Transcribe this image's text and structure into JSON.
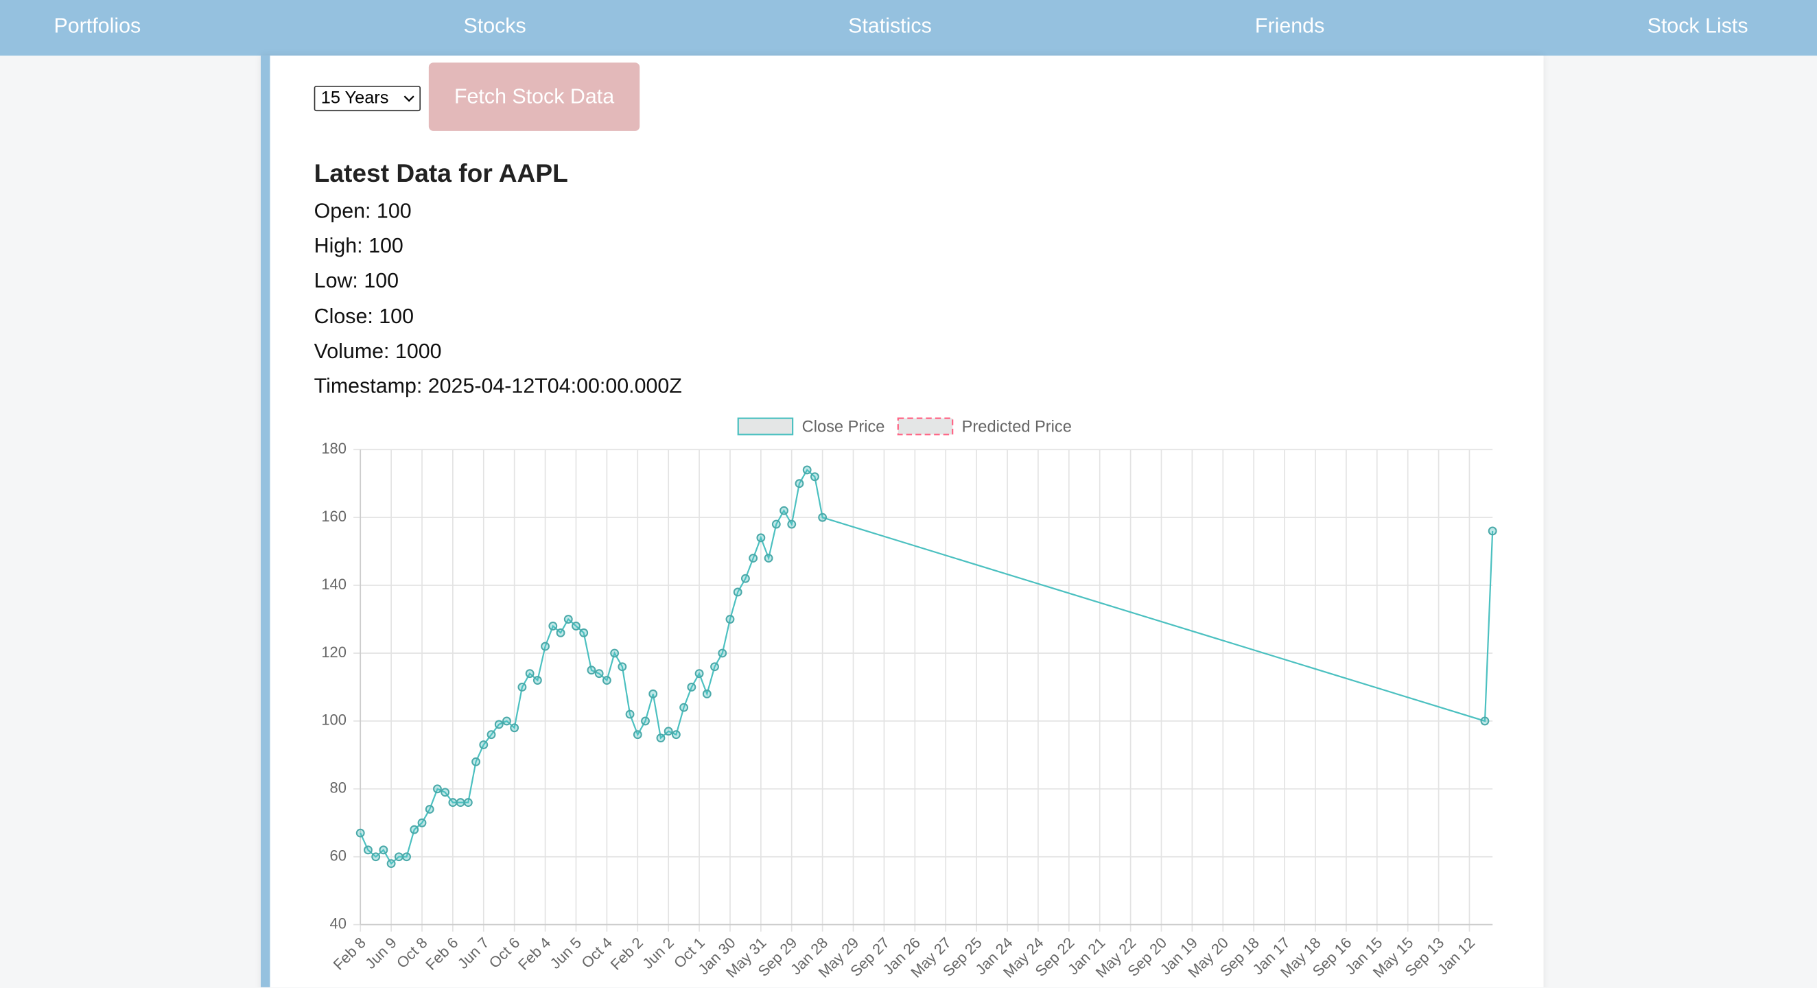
{
  "nav": [
    "Portfolios",
    "Stocks",
    "Statistics",
    "Friends",
    "Stock Lists"
  ],
  "controls": {
    "period": "15 Years",
    "button": "Fetch Stock Data"
  },
  "latest": {
    "heading": "Latest Data for AAPL",
    "lines": [
      "Open: 100",
      "High: 100",
      "Low: 100",
      "Close: 100",
      "Volume: 1000",
      "Timestamp: 2025-04-12T04:00:00.000Z"
    ]
  },
  "chart_data": {
    "type": "line",
    "categories": [
      "Feb 8",
      null,
      null,
      null,
      "Jun 9",
      null,
      null,
      null,
      "Oct 8",
      null,
      null,
      null,
      "Feb 6",
      null,
      null,
      null,
      "Jun 7",
      null,
      null,
      null,
      "Oct 6",
      null,
      null,
      null,
      "Feb 4",
      null,
      null,
      null,
      "Jun 5",
      null,
      null,
      null,
      "Oct 4",
      null,
      null,
      null,
      "Feb 2",
      null,
      null,
      null,
      "Jun 2",
      null,
      null,
      null,
      "Oct 1",
      null,
      null,
      null,
      "Jan 30",
      null,
      null,
      null,
      "May 31",
      null,
      null,
      null,
      "Sep 29",
      null,
      null,
      null,
      "Jan 28",
      null,
      null,
      null,
      "May 29",
      null,
      null,
      null,
      "Sep 27",
      null,
      null,
      null,
      "Jan 26",
      null,
      null,
      null,
      "May 27",
      null,
      null,
      null,
      "Sep 25",
      null,
      null,
      null,
      "Jan 24",
      null,
      null,
      null,
      "May 24",
      null,
      null,
      null,
      "Sep 22",
      null,
      null,
      null,
      "Jan 21",
      null,
      null,
      null,
      "May 22",
      null,
      null,
      null,
      "Sep 20",
      null,
      null,
      null,
      "Jan 19",
      null,
      null,
      null,
      "May 20",
      null,
      null,
      null,
      "Sep 18",
      null,
      null,
      null,
      "Jan 17",
      null,
      null,
      null,
      "May 18",
      null,
      null,
      null,
      "Sep 16",
      null,
      null,
      null,
      "Jan 15",
      null,
      null,
      null,
      "May 15",
      null,
      null,
      null,
      "Sep 13",
      null,
      null,
      null,
      "Jan 12",
      null,
      null,
      null
    ],
    "series": [
      {
        "name": "Close Price",
        "color": "#4bc0c0",
        "fill": "#e4e6e6",
        "dashed": false,
        "values": [
          67,
          62,
          60,
          62,
          58,
          60,
          60,
          68,
          70,
          74,
          80,
          79,
          76,
          76,
          76,
          88,
          93,
          96,
          99,
          100,
          98,
          110,
          114,
          112,
          122,
          128,
          126,
          130,
          128,
          126,
          115,
          114,
          112,
          120,
          116,
          102,
          96,
          100,
          108,
          95,
          97,
          96,
          104,
          110,
          114,
          108,
          116,
          120,
          130,
          138,
          142,
          148,
          154,
          148,
          158,
          162,
          158,
          170,
          174,
          172,
          160,
          null,
          null,
          null,
          null,
          null,
          null,
          null,
          null,
          null,
          null,
          null,
          null,
          null,
          null,
          null,
          null,
          null,
          null,
          null,
          null,
          null,
          null,
          null,
          null,
          null,
          null,
          null,
          null,
          null,
          null,
          null,
          null,
          null,
          null,
          null,
          null,
          null,
          null,
          null,
          null,
          null,
          null,
          null,
          null,
          null,
          null,
          null,
          null,
          null,
          null,
          null,
          null,
          null,
          null,
          null,
          null,
          null,
          null,
          null,
          null,
          null,
          null,
          null,
          null,
          null,
          null,
          null,
          null,
          null,
          null,
          null,
          null,
          null,
          null,
          null,
          null,
          null,
          null,
          null,
          null,
          null,
          null,
          null,
          null,
          null,
          100,
          156
        ]
      },
      {
        "name": "Predicted Price",
        "color": "#ff6384",
        "fill": "#e4e6e6",
        "dashed": true,
        "values": [
          null,
          null,
          null,
          null,
          null,
          null,
          null,
          null,
          null,
          null,
          null,
          null,
          null,
          null,
          null,
          null,
          null,
          null,
          null,
          null,
          null,
          null,
          null,
          null,
          null,
          null,
          null,
          null,
          null,
          null,
          null,
          null,
          null,
          null,
          null,
          null,
          null,
          null,
          null,
          null,
          null,
          null,
          null,
          null,
          null,
          null,
          null,
          null,
          null,
          null,
          null,
          null,
          null,
          null,
          null,
          null,
          null,
          null,
          null,
          null,
          null,
          null,
          null,
          null,
          null,
          null,
          null,
          null,
          null,
          null,
          null,
          null,
          null,
          null,
          null,
          null,
          null,
          null,
          null,
          null,
          null,
          null,
          null,
          null,
          null,
          null,
          null,
          null,
          null,
          null,
          null,
          null,
          null,
          null,
          null,
          null,
          null,
          null,
          null,
          null,
          null,
          null,
          null,
          null,
          null,
          null,
          null,
          null,
          null,
          null,
          null,
          null,
          null,
          null,
          null,
          null,
          null,
          null,
          null,
          null,
          null,
          null,
          null,
          null,
          null,
          null,
          null,
          null,
          null,
          null,
          null,
          null,
          null,
          null,
          null,
          null,
          null,
          null,
          null,
          null,
          null,
          null,
          null,
          null,
          null,
          null,
          null,
          null
        ]
      }
    ],
    "ylim": [
      40,
      180
    ],
    "yticks": [
      40,
      60,
      80,
      100,
      120,
      140,
      160,
      180
    ],
    "grid": true,
    "legend": "top",
    "span_gaps": true
  }
}
